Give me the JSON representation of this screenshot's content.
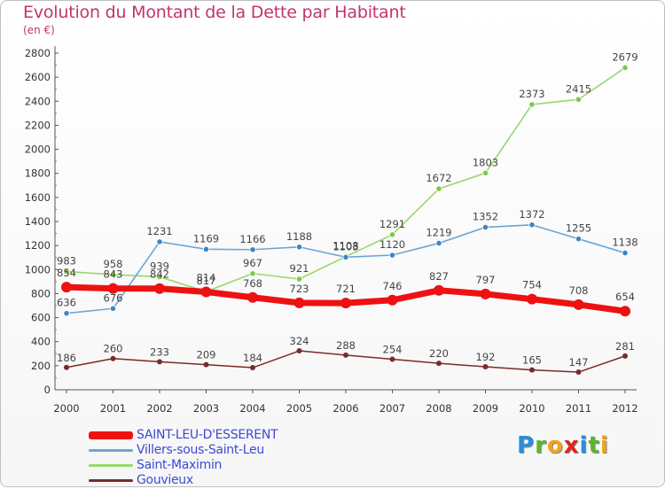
{
  "header": {
    "title": "Evolution du Montant de la Dette par Habitant",
    "subtitle": "(en €)"
  },
  "brand": {
    "letters": [
      "P",
      "r",
      "o",
      "x",
      "i",
      "t",
      "i"
    ],
    "colors": [
      "#2a8fd8",
      "#5cb531",
      "#f2a21b",
      "#e2231a",
      "#2a8fd8",
      "#5cb531",
      "#f2a21b"
    ]
  },
  "chart_data": {
    "type": "line",
    "title": "Evolution du Montant de la Dette par Habitant",
    "subtitle": "(en €)",
    "xlabel": "",
    "ylabel": "",
    "ylim": [
      0,
      2800
    ],
    "yticks": [
      0,
      200,
      400,
      600,
      800,
      1000,
      1200,
      1400,
      1600,
      1800,
      2000,
      2200,
      2400,
      2600,
      2800
    ],
    "grid": false,
    "legend_position": "bottom-left",
    "categories": [
      "2000",
      "2001",
      "2002",
      "2003",
      "2004",
      "2005",
      "2006",
      "2007",
      "2008",
      "2009",
      "2010",
      "2011",
      "2012"
    ],
    "series": [
      {
        "name": "Gouvieux",
        "color": "#7a2a2a",
        "values": [
          186,
          260,
          233,
          209,
          184,
          324,
          288,
          254,
          220,
          192,
          165,
          147,
          281
        ]
      },
      {
        "name": "Saint-Maximin",
        "color": "#9ad86a",
        "values": [
          983,
          958,
          939,
          817,
          967,
          921,
          1108,
          1291,
          1672,
          1803,
          2373,
          2415,
          2679
        ]
      },
      {
        "name": "Villers-sous-Saint-Leu",
        "color": "#6da5d4",
        "values": [
          636,
          676,
          1231,
          1169,
          1166,
          1188,
          1103,
          1120,
          1219,
          1352,
          1372,
          1255,
          1138
        ]
      },
      {
        "name": "SAINT-LEU-D'ESSERENT",
        "color": "#ee1111",
        "values": [
          854,
          843,
          842,
          814,
          768,
          723,
          721,
          746,
          827,
          797,
          754,
          708,
          654
        ]
      }
    ]
  },
  "legend": [
    {
      "label": "SAINT-LEU-D'ESSERENT",
      "color": "#ee1111",
      "text_color": "#3d4ad0"
    },
    {
      "label": "Villers-sous-Saint-Leu",
      "color": "#6da5d4",
      "text_color": "#3d4ad0"
    },
    {
      "label": "Saint-Maximin",
      "color": "#9ad86a",
      "text_color": "#3d4ad0"
    },
    {
      "label": "Gouvieux",
      "color": "#7a2a2a",
      "text_color": "#3d4ad0"
    }
  ]
}
